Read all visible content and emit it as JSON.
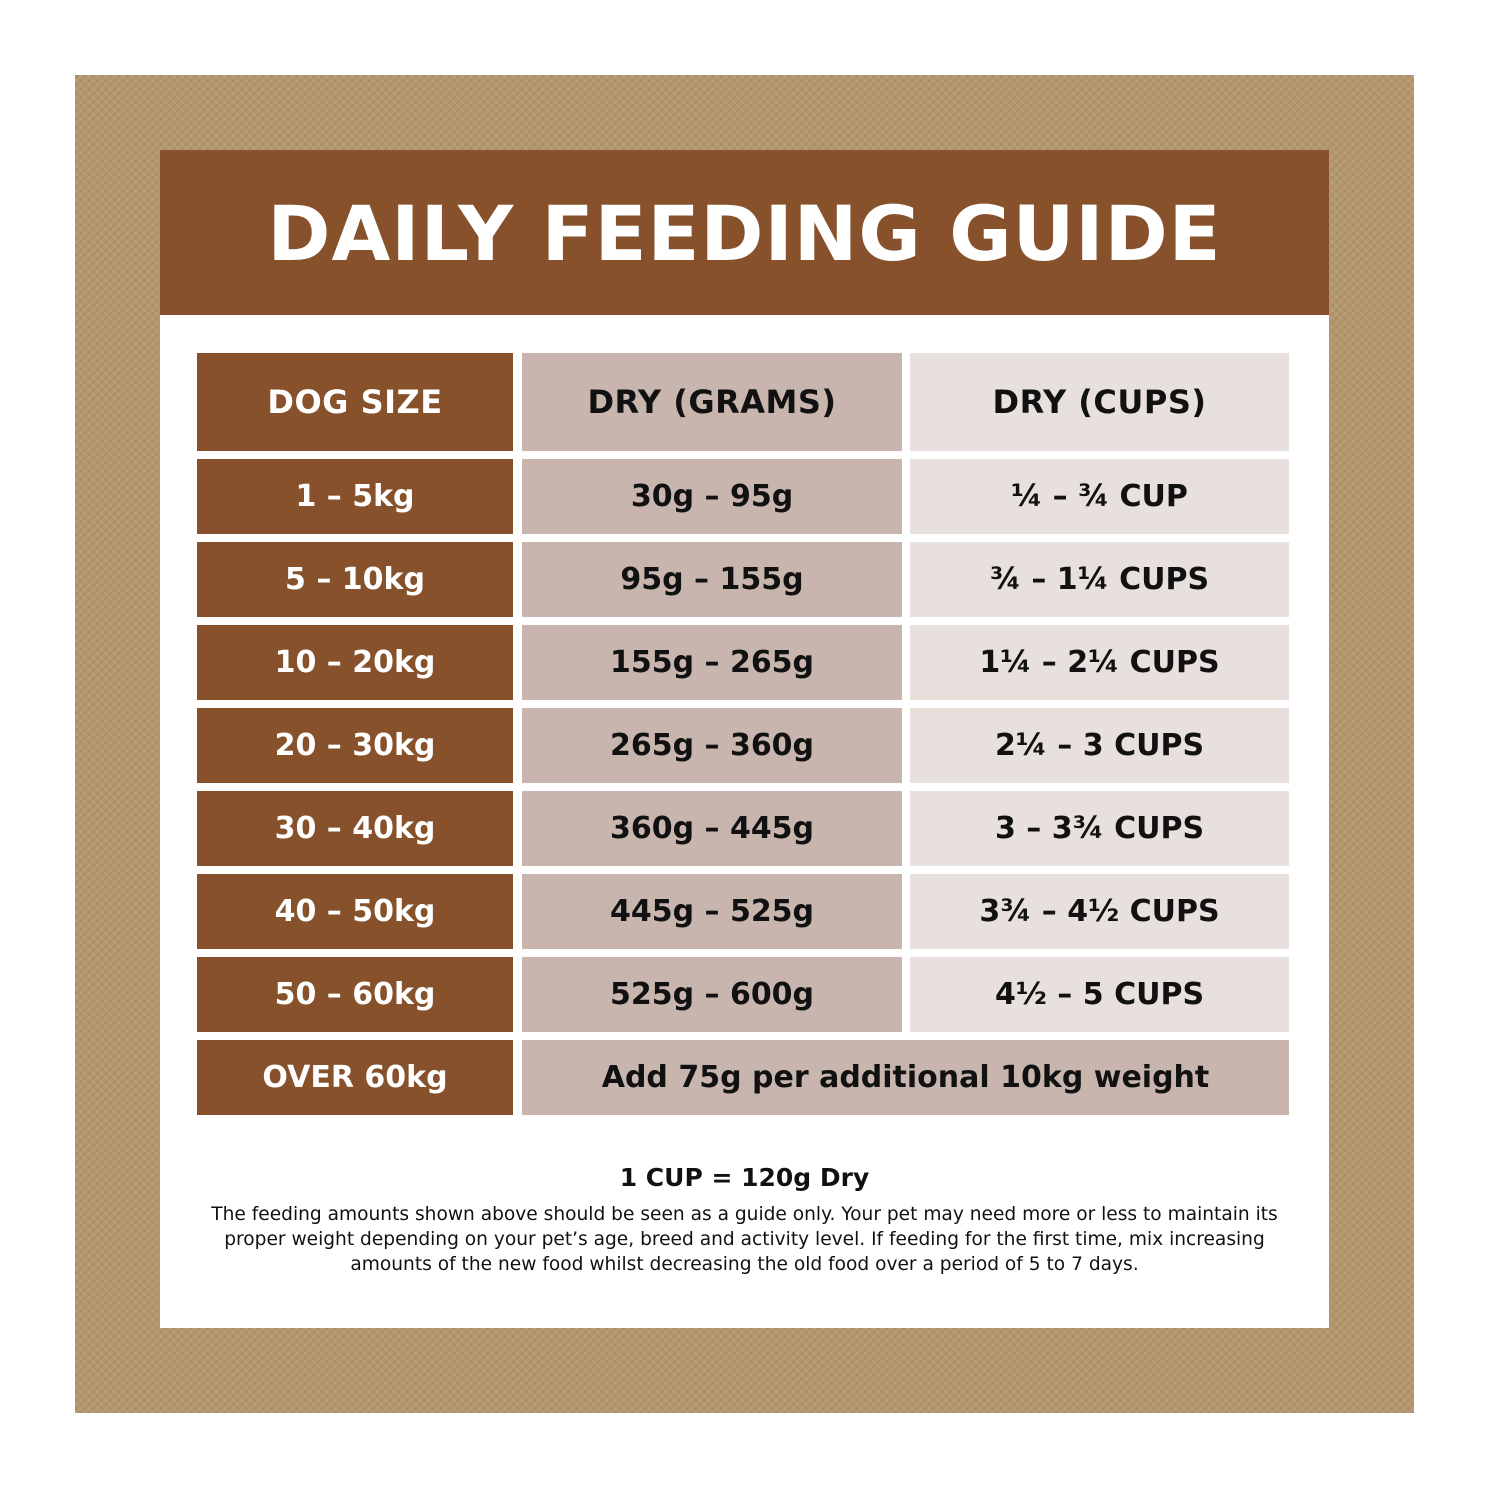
{
  "title": "DAILY FEEDING GUIDE",
  "headers": {
    "dog_size": "DOG SIZE",
    "dry_grams": "DRY (GRAMS)",
    "dry_cups": "DRY (CUPS)"
  },
  "rows": [
    {
      "size": "1 – 5kg",
      "grams": "30g – 95g",
      "cups": "¼ – ¾ CUP"
    },
    {
      "size": "5 – 10kg",
      "grams": "95g – 155g",
      "cups": "¾ – 1¼ CUPS"
    },
    {
      "size": "10 – 20kg",
      "grams": "155g – 265g",
      "cups": "1¼ – 2¼ CUPS"
    },
    {
      "size": "20 – 30kg",
      "grams": "265g – 360g",
      "cups": "2¼ – 3 CUPS"
    },
    {
      "size": "30 – 40kg",
      "grams": "360g – 445g",
      "cups": "3 – 3¾ CUPS"
    },
    {
      "size": "40 – 50kg",
      "grams": "445g – 525g",
      "cups": "3¾ – 4½ CUPS"
    },
    {
      "size": "50 – 60kg",
      "grams": "525g – 600g",
      "cups": "4½ – 5 CUPS"
    }
  ],
  "last_row": {
    "size": "OVER 60kg",
    "note": "Add 75g per additional 10kg weight"
  },
  "conversion": "1 CUP = 120g Dry",
  "disclaimer": "The feeding amounts shown above should be seen as a guide only. Your pet may need more or less to maintain its proper weight depending on your pet’s age, breed and activity level. If feeding for the first time, mix increasing amounts of the new food whilst decreasing the old food over a period of 5 to 7 days.",
  "colors": {
    "brown": "#87522b",
    "frame": "#b4976d",
    "grams_fill": "#c8b6ae",
    "cups_fill": "#e8e0dd"
  }
}
